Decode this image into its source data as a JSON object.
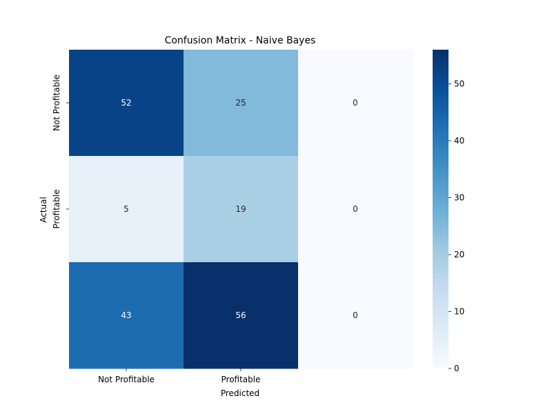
{
  "chart_data": {
    "type": "heatmap",
    "title": "Confusion Matrix - Naive Bayes",
    "xlabel": "Predicted",
    "ylabel": "Actual",
    "x_tick_labels": [
      "Not Profitable",
      "Profitable",
      ""
    ],
    "y_tick_labels": [
      "Not Profitable",
      "Profitable",
      ""
    ],
    "values": [
      [
        52,
        25,
        0
      ],
      [
        5,
        19,
        0
      ],
      [
        43,
        56,
        0
      ]
    ],
    "colormap": "Blues",
    "colorbar": {
      "min": 0,
      "max": 56,
      "ticks": [
        0,
        10,
        20,
        30,
        40,
        50
      ]
    },
    "annotate": true
  }
}
